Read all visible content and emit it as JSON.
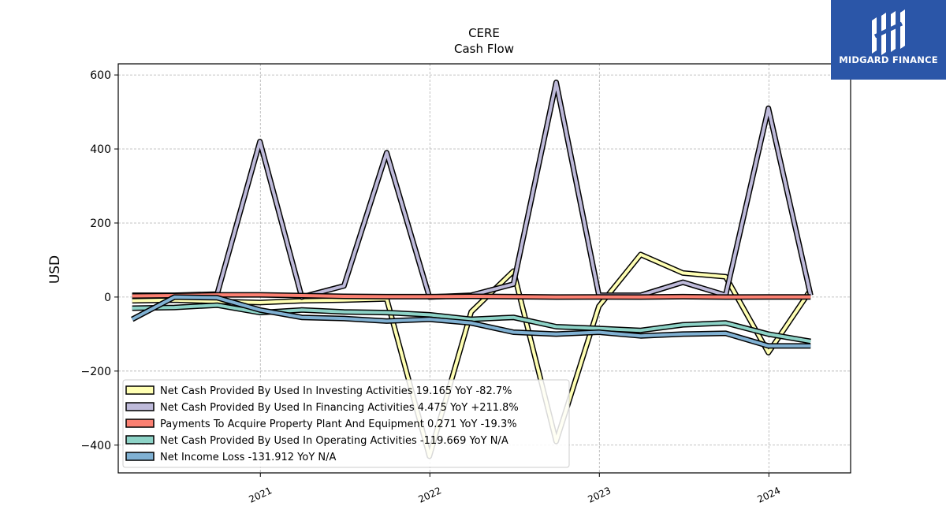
{
  "brand": {
    "name": "MIDGARD FINANCE",
    "bg_color": "#2b56a8"
  },
  "chart_data": {
    "type": "line",
    "title": "CERE",
    "subtitle": "Cash Flow",
    "xlabel": "",
    "ylabel": "USD",
    "xlim": [
      "2020-03-01",
      "2024-06-25"
    ],
    "ylim": [
      -475,
      630
    ],
    "x_ticks": [
      "2021-01-01",
      "2022-01-01",
      "2023-01-01",
      "2024-01-01"
    ],
    "x_tick_labels": [
      "2021",
      "2022",
      "2023",
      "2024"
    ],
    "y_ticks": [
      -400,
      -200,
      0,
      200,
      400,
      600
    ],
    "y_tick_labels": [
      "−400",
      "−200",
      "0",
      "200",
      "400",
      "600"
    ],
    "grid": true,
    "legend_position": "lower-left",
    "x": [
      "2020-03-31",
      "2020-06-30",
      "2020-09-30",
      "2020-12-31",
      "2021-03-31",
      "2021-06-30",
      "2021-09-30",
      "2021-12-31",
      "2022-03-31",
      "2022-06-30",
      "2022-09-30",
      "2022-12-31",
      "2023-03-31",
      "2023-06-30",
      "2023-09-30",
      "2023-12-31",
      "2024-03-31"
    ],
    "series": [
      {
        "name": "Net Cash Provided By Used In Investing Activities",
        "legend_label": "Net Cash Provided By Used In Investing Activities  19.165 YoY -82.7%",
        "color": "#ffffb3",
        "values": [
          -10,
          -8,
          -12,
          -15,
          -10,
          -8,
          -5,
          -430,
          -40,
          70,
          -390,
          -25,
          115,
          65,
          55,
          -150,
          19.165
        ]
      },
      {
        "name": "Net Cash Provided By Used In Financing Activities",
        "legend_label": "Net Cash Provided By Used In Financing Activities  4.475 YoY +211.8%",
        "color": "#bebada",
        "values": [
          5,
          5,
          8,
          420,
          0,
          30,
          390,
          0,
          5,
          35,
          580,
          5,
          5,
          40,
          5,
          510,
          4.475
        ]
      },
      {
        "name": "Payments To Acquire Property Plant And Equipment",
        "legend_label": "Payments To Acquire Property Plant And Equipment  0.271 YoY -19.3%",
        "color": "#fb8072",
        "values": [
          3,
          4,
          6,
          6,
          4,
          2,
          1,
          1,
          2,
          1,
          0,
          0.5,
          0,
          1,
          0,
          0.3,
          0.271
        ]
      },
      {
        "name": "Net Cash Provided By Used In Operating Activities",
        "legend_label": "Net Cash Provided By Used In Operating Activities  -119.669 YoY N/A",
        "color": "#8dd3c7",
        "values": [
          -30,
          -28,
          -22,
          -42,
          -35,
          -40,
          -42,
          -48,
          -60,
          -55,
          -80,
          -85,
          -90,
          -75,
          -70,
          -100,
          -119.669
        ]
      },
      {
        "name": "Net Income Loss",
        "legend_label": "Net Income Loss  -131.912 YoY N/A",
        "color": "#80b1d3",
        "values": [
          -60,
          0,
          -2,
          -35,
          -55,
          -58,
          -65,
          -60,
          -70,
          -95,
          -100,
          -95,
          -105,
          -100,
          -98,
          -132,
          -131.912
        ]
      }
    ]
  }
}
